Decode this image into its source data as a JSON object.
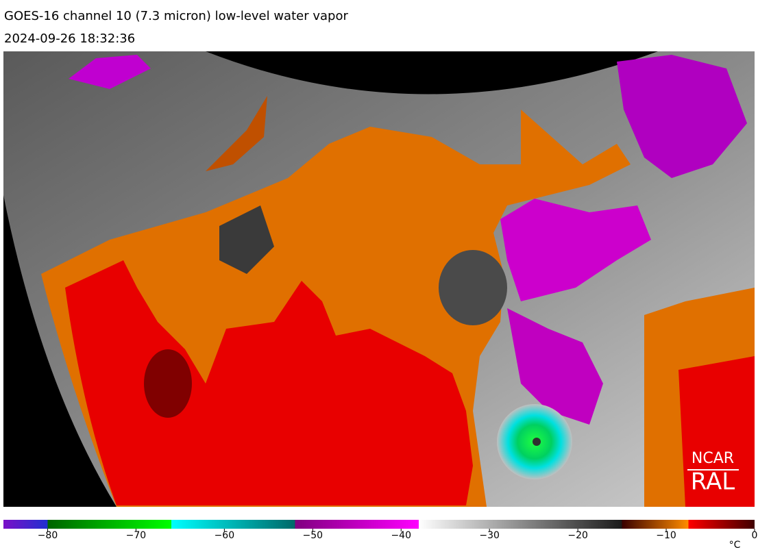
{
  "header": {
    "title": "GOES-16 channel 10 (7.3 micron) low-level water vapor",
    "timestamp": "2024-09-26 18:32:36"
  },
  "logo": {
    "line1": "NCAR",
    "line2": "RAL"
  },
  "colorbar": {
    "lim": [
      -85,
      0
    ],
    "unit": "°C",
    "ticks": [
      {
        "value": -80,
        "label": "−80"
      },
      {
        "value": -70,
        "label": "−70"
      },
      {
        "value": -60,
        "label": "−60"
      },
      {
        "value": -50,
        "label": "−50"
      },
      {
        "value": -40,
        "label": "−40"
      },
      {
        "value": -30,
        "label": "−30"
      },
      {
        "value": -20,
        "label": "−20"
      },
      {
        "value": -10,
        "label": "−10"
      },
      0
    ],
    "stops": [
      {
        "value": -85,
        "color": "#7a10c8"
      },
      {
        "value": -80,
        "color": "#2030d0"
      },
      {
        "value": -80,
        "color": "#006400"
      },
      {
        "value": -66,
        "color": "#00ff00"
      },
      {
        "value": -66,
        "color": "#00ffff"
      },
      {
        "value": -52,
        "color": "#006868"
      },
      {
        "value": -52,
        "color": "#800080"
      },
      {
        "value": -38,
        "color": "#ff00ff"
      },
      {
        "value": -38,
        "color": "#ffffff"
      },
      {
        "value": -15,
        "color": "#1a1a1a"
      },
      {
        "value": -15,
        "color": "#3a0000"
      },
      {
        "value": -7.5,
        "color": "#ff8c00"
      },
      {
        "value": -7.5,
        "color": "#ff0000"
      },
      {
        "value": 0,
        "color": "#400000"
      }
    ]
  }
}
